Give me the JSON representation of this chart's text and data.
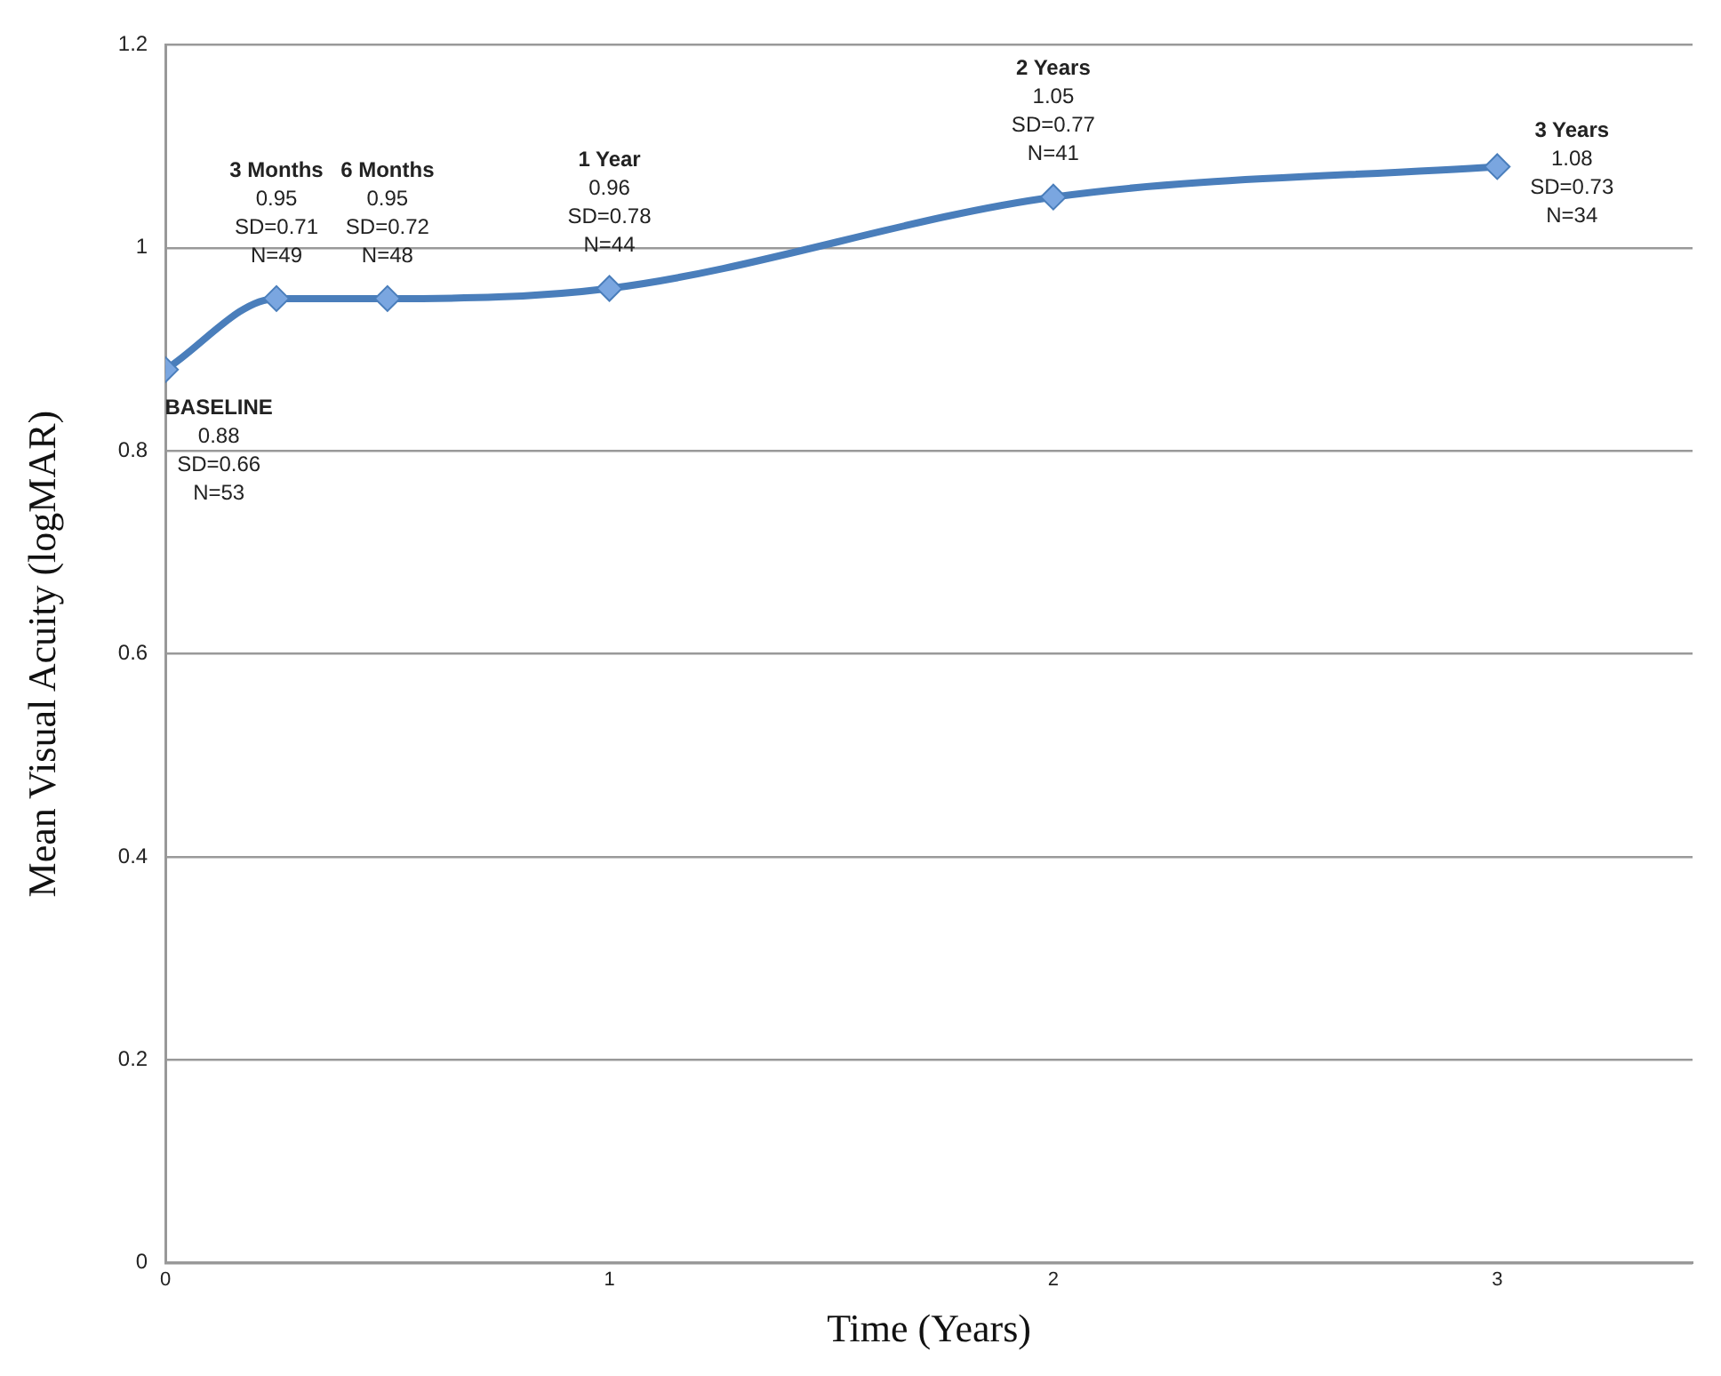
{
  "chart_data": {
    "type": "line",
    "xlabel": "Time (Years)",
    "ylabel": "Mean Visual Acuity (logMAR)",
    "x": [
      0,
      0.25,
      0.5,
      1,
      2,
      3
    ],
    "series": [
      {
        "color": "#4a7ebb",
        "values": [
          0.88,
          0.95,
          0.95,
          0.96,
          1.05,
          1.08
        ]
      }
    ],
    "xlim": [
      0,
      3.44
    ],
    "xticks": [
      0,
      1,
      2,
      3
    ],
    "ylim": [
      0,
      1.2
    ],
    "yticks": [
      0,
      0.2,
      0.4,
      0.6,
      0.8,
      1,
      1.2
    ],
    "grid": "y",
    "legend": false,
    "marker": "diamond",
    "line_style": "solid",
    "annotations": [
      {
        "text": "BASELINE\n0.88\nSD=0.66\nN=53",
        "x": 0,
        "y": 0.88
      },
      {
        "text": "3 Months\n0.95\nSD=0.71\nN=49",
        "x": 0.25,
        "y": 0.95
      },
      {
        "text": "6 Months\n0.95\nSD=0.72\nN=48",
        "x": 0.5,
        "y": 0.95
      },
      {
        "text": "1 Year\n0.96\nSD=0.78\nN=44",
        "x": 1,
        "y": 0.96
      },
      {
        "text": "2 Years\n1.05\nSD=0.77\nN=41",
        "x": 2,
        "y": 1.05
      },
      {
        "text": "3 Years\n1.08\nSD=0.73\nN=34",
        "x": 3,
        "y": 1.08
      }
    ]
  }
}
